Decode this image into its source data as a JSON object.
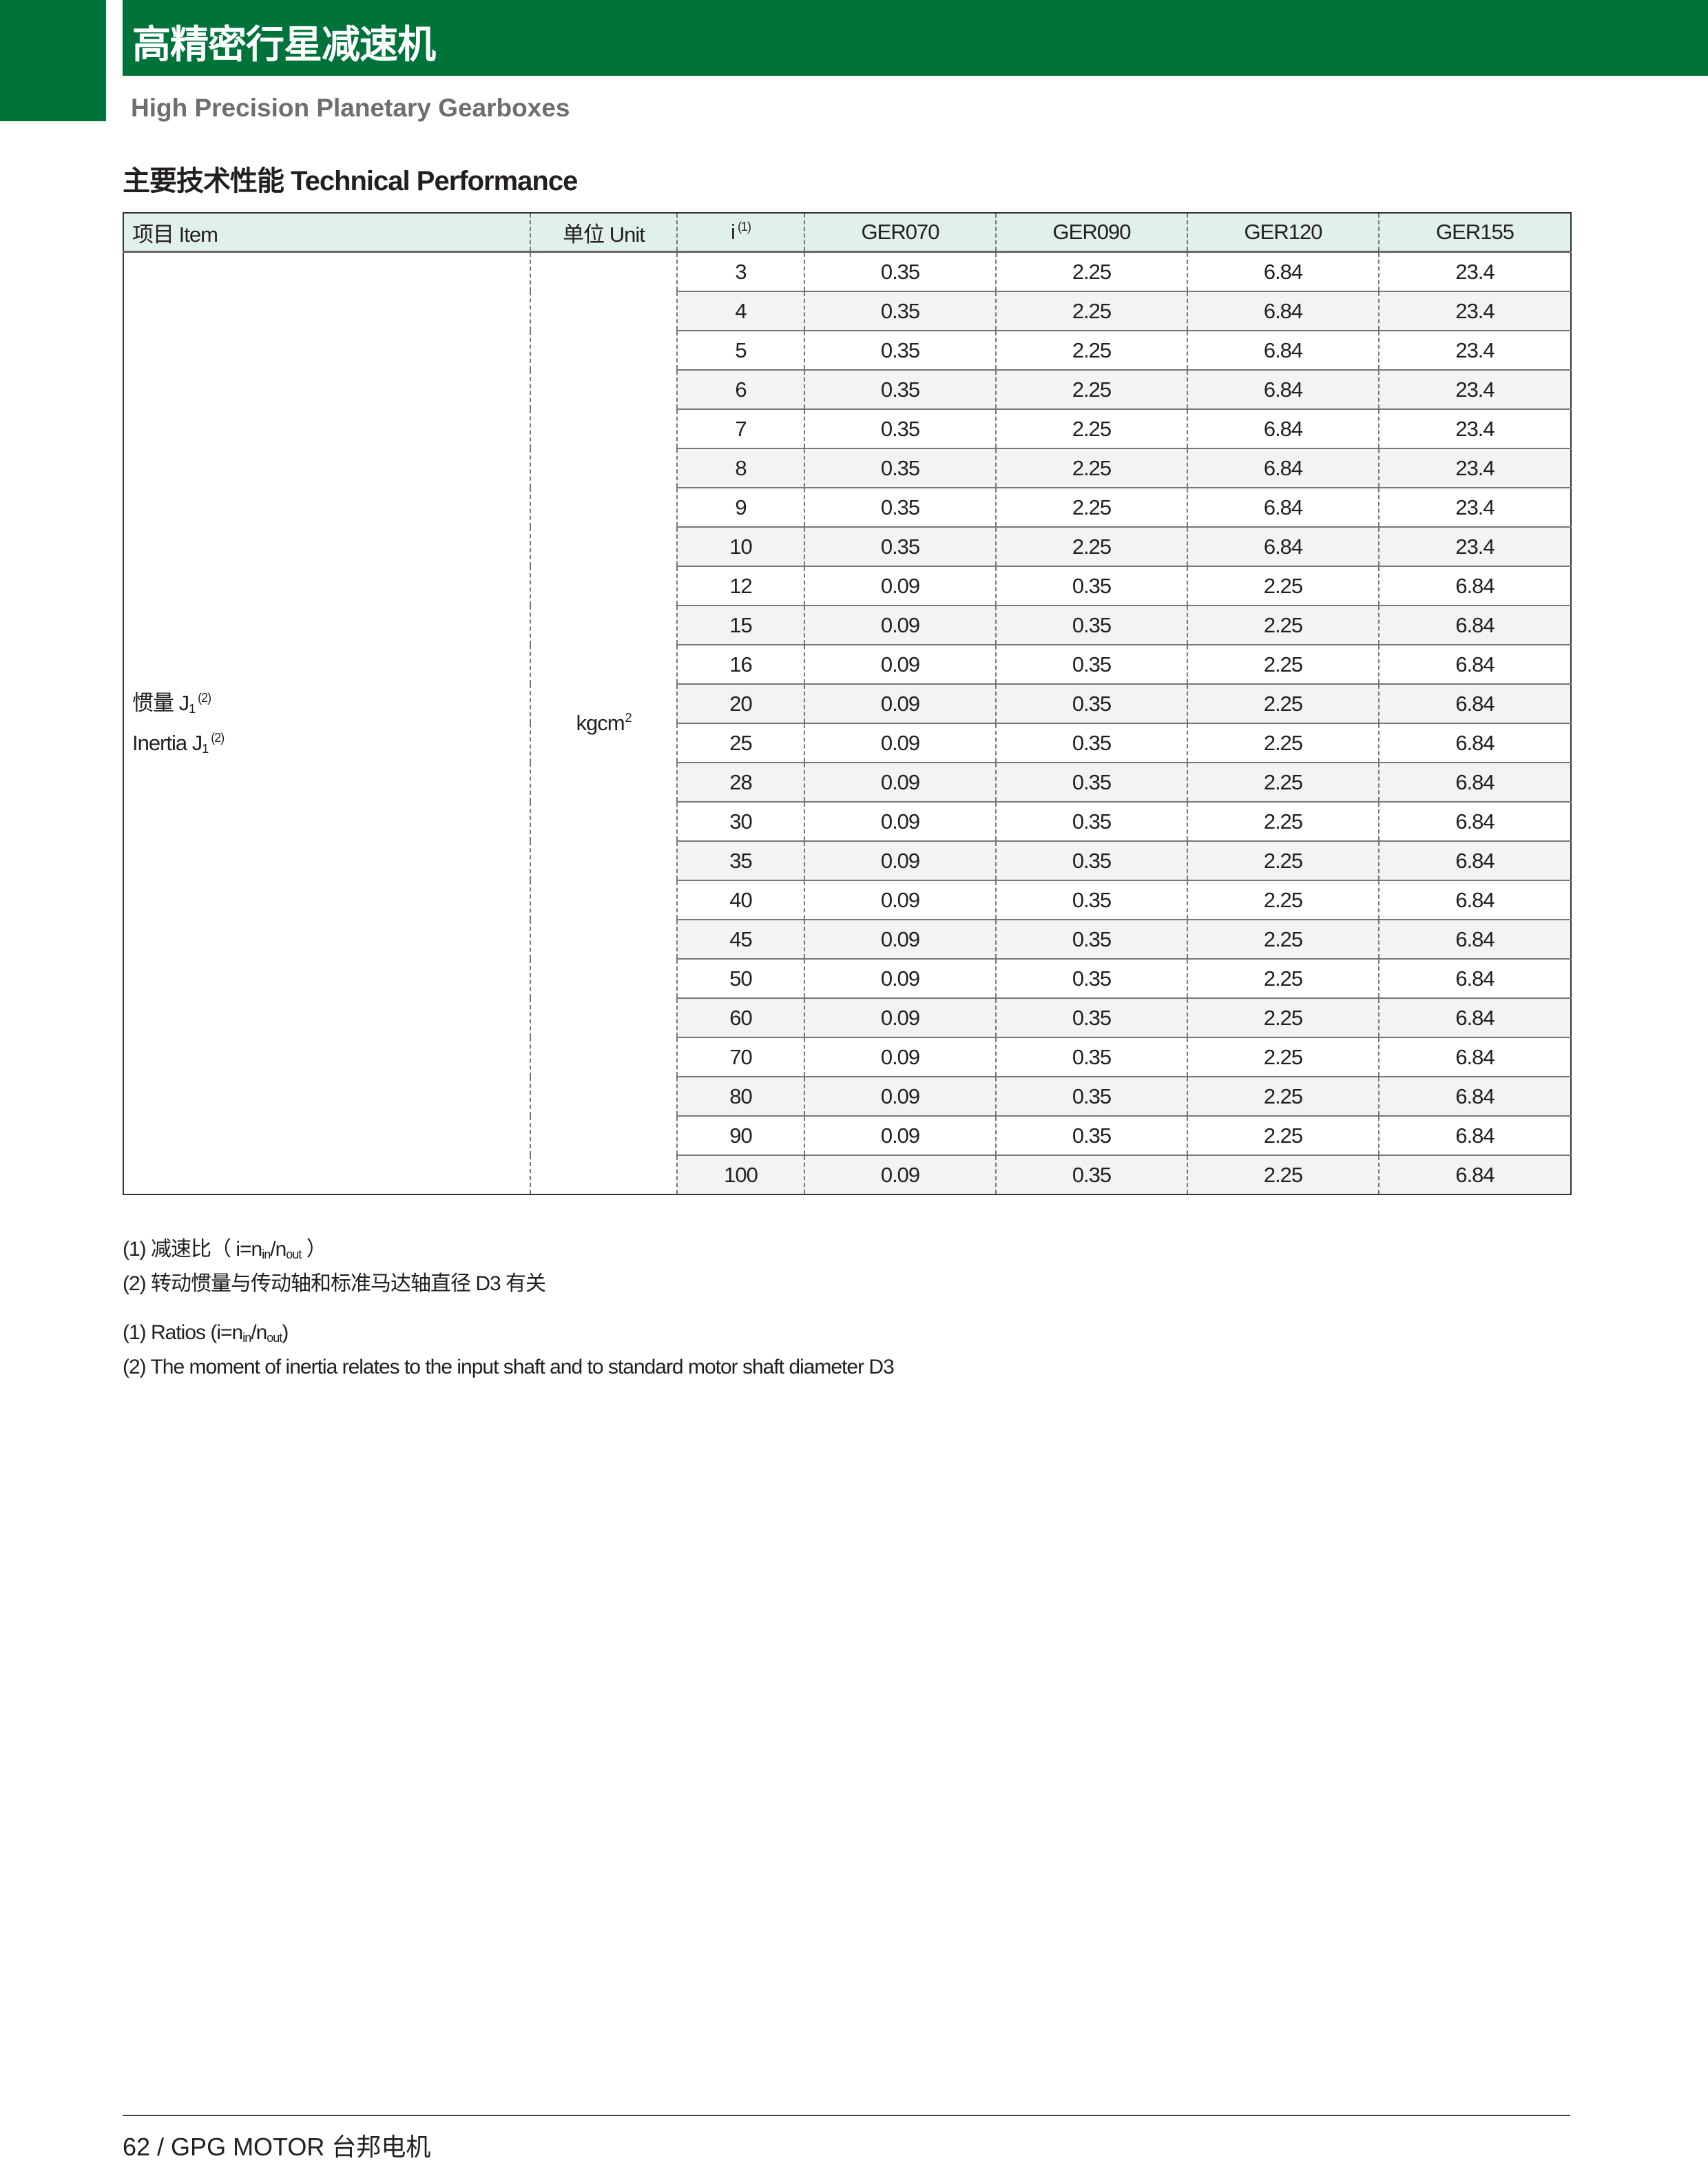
{
  "header": {
    "title_cn": "高精密行星减速机",
    "subtitle": "High Precision Planetary Gearboxes",
    "brand_color": "#00733a"
  },
  "section": {
    "title": "主要技术性能 Technical Performance"
  },
  "table": {
    "headers": {
      "item": "项目 Item",
      "unit": "单位 Unit",
      "ratio": "i",
      "ratio_note": "(1)",
      "models": [
        "GER070",
        "GER090",
        "GER120",
        "GER155"
      ]
    },
    "item": {
      "label_cn": "惯量 J",
      "label_en": "Inertia J",
      "sub": "1",
      "note": "(2)"
    },
    "unit": {
      "base": "kgcm",
      "exp": "2"
    },
    "rows": [
      {
        "i": "3",
        "v": [
          "0.35",
          "2.25",
          "6.84",
          "23.4"
        ]
      },
      {
        "i": "4",
        "v": [
          "0.35",
          "2.25",
          "6.84",
          "23.4"
        ]
      },
      {
        "i": "5",
        "v": [
          "0.35",
          "2.25",
          "6.84",
          "23.4"
        ]
      },
      {
        "i": "6",
        "v": [
          "0.35",
          "2.25",
          "6.84",
          "23.4"
        ]
      },
      {
        "i": "7",
        "v": [
          "0.35",
          "2.25",
          "6.84",
          "23.4"
        ]
      },
      {
        "i": "8",
        "v": [
          "0.35",
          "2.25",
          "6.84",
          "23.4"
        ]
      },
      {
        "i": "9",
        "v": [
          "0.35",
          "2.25",
          "6.84",
          "23.4"
        ]
      },
      {
        "i": "10",
        "v": [
          "0.35",
          "2.25",
          "6.84",
          "23.4"
        ]
      },
      {
        "i": "12",
        "v": [
          "0.09",
          "0.35",
          "2.25",
          "6.84"
        ]
      },
      {
        "i": "15",
        "v": [
          "0.09",
          "0.35",
          "2.25",
          "6.84"
        ]
      },
      {
        "i": "16",
        "v": [
          "0.09",
          "0.35",
          "2.25",
          "6.84"
        ]
      },
      {
        "i": "20",
        "v": [
          "0.09",
          "0.35",
          "2.25",
          "6.84"
        ]
      },
      {
        "i": "25",
        "v": [
          "0.09",
          "0.35",
          "2.25",
          "6.84"
        ]
      },
      {
        "i": "28",
        "v": [
          "0.09",
          "0.35",
          "2.25",
          "6.84"
        ]
      },
      {
        "i": "30",
        "v": [
          "0.09",
          "0.35",
          "2.25",
          "6.84"
        ]
      },
      {
        "i": "35",
        "v": [
          "0.09",
          "0.35",
          "2.25",
          "6.84"
        ]
      },
      {
        "i": "40",
        "v": [
          "0.09",
          "0.35",
          "2.25",
          "6.84"
        ]
      },
      {
        "i": "45",
        "v": [
          "0.09",
          "0.35",
          "2.25",
          "6.84"
        ]
      },
      {
        "i": "50",
        "v": [
          "0.09",
          "0.35",
          "2.25",
          "6.84"
        ]
      },
      {
        "i": "60",
        "v": [
          "0.09",
          "0.35",
          "2.25",
          "6.84"
        ]
      },
      {
        "i": "70",
        "v": [
          "0.09",
          "0.35",
          "2.25",
          "6.84"
        ]
      },
      {
        "i": "80",
        "v": [
          "0.09",
          "0.35",
          "2.25",
          "6.84"
        ]
      },
      {
        "i": "90",
        "v": [
          "0.09",
          "0.35",
          "2.25",
          "6.84"
        ]
      },
      {
        "i": "100",
        "v": [
          "0.09",
          "0.35",
          "2.25",
          "6.84"
        ]
      }
    ]
  },
  "notes": {
    "cn1_prefix": "(1) 减速比（ i=n",
    "cn1_in": "in",
    "cn1_mid": "/n",
    "cn1_out": "out",
    "cn1_suffix": " ）",
    "cn2": "(2) 转动惯量与传动轴和标准马达轴直径 D3 有关",
    "en1_prefix": "(1) Ratios (i=n",
    "en1_in": "in",
    "en1_mid": "/n",
    "en1_out": "out",
    "en1_suffix": ")",
    "en2": "(2) The moment of inertia relates to the input shaft and to standard motor shaft diameter D3"
  },
  "footer": {
    "text": "62  /  GPG MOTOR 台邦电机"
  }
}
